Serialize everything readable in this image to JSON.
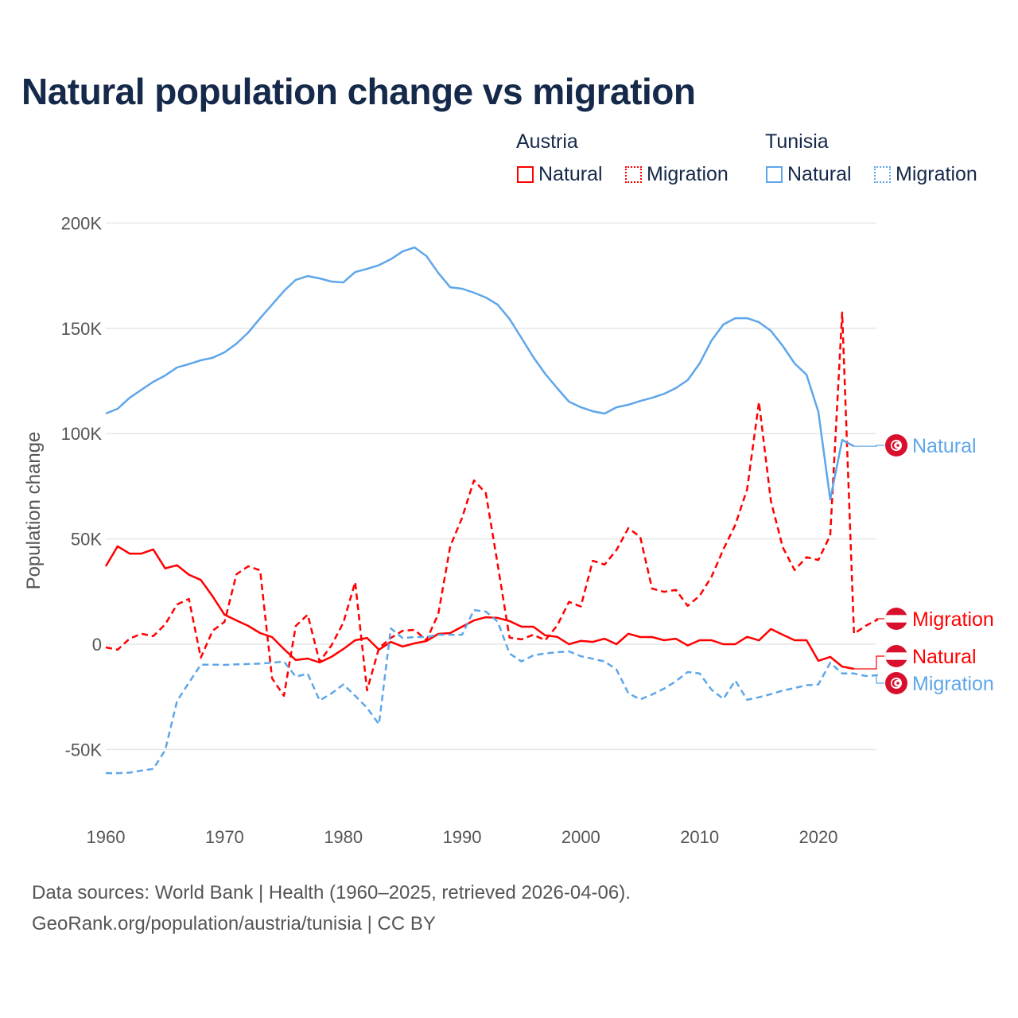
{
  "title": "Natural population change vs migration",
  "legend": {
    "groups": [
      {
        "name": "Austria",
        "color": "#ff0000",
        "items": [
          "Natural",
          "Migration"
        ]
      },
      {
        "name": "Tunisia",
        "color": "#5ea6ea",
        "items": [
          "Natural",
          "Migration"
        ]
      }
    ]
  },
  "footer": {
    "line1": "Data sources: World Bank | Health (1960–2025, retrieved 2026-04-06).",
    "line2": "GeoRank.org/population/austria/tunisia | CC BY"
  },
  "chart_data": {
    "type": "line",
    "title": "Natural population change vs migration",
    "xlabel": "",
    "ylabel": "Population change",
    "xlim": [
      1960,
      2025
    ],
    "ylim": [
      -50000,
      200000
    ],
    "x_ticks": [
      1960,
      1970,
      1980,
      1990,
      2000,
      2010,
      2020
    ],
    "x_tick_labels": [
      "1960",
      "1970",
      "1980",
      "1990",
      "2000",
      "2010",
      "2020"
    ],
    "y_ticks": [
      200000,
      150000,
      100000,
      50000,
      0,
      -50000
    ],
    "y_tick_labels": [
      "200K",
      "150K",
      "100K",
      "50K",
      "0",
      "-50K"
    ],
    "grid": true,
    "legend_position": "top-right",
    "series": [
      {
        "name": "Austria Natural",
        "country": "Austria",
        "kind": "Natural",
        "color": "#ff0000",
        "dashed": false,
        "end_label": "Natural",
        "start_year": 1960,
        "values": [
          37000,
          46500,
          43000,
          43000,
          45000,
          36000,
          37500,
          33000,
          30500,
          22700,
          14000,
          11300,
          8700,
          5300,
          3400,
          -2300,
          -7500,
          -6800,
          -8700,
          -6000,
          -2300,
          1900,
          3000,
          -2600,
          1100,
          -1100,
          400,
          1500,
          4900,
          5300,
          8300,
          11300,
          12800,
          12500,
          11000,
          8300,
          8300,
          4200,
          3500,
          0,
          1600,
          1100,
          2600,
          0,
          5000,
          3400,
          3400,
          1900,
          2600,
          -600,
          1900,
          1900,
          0,
          0,
          3500,
          1800,
          7200,
          4500,
          1900,
          1900,
          -7900,
          -6000,
          -10600,
          -11700
        ]
      },
      {
        "name": "Austria Migration",
        "country": "Austria",
        "kind": "Migration",
        "color": "#ff0000",
        "dashed": true,
        "end_label": "Migration",
        "start_year": 1960,
        "values": [
          -1500,
          -2600,
          2600,
          5000,
          3800,
          9400,
          18900,
          21500,
          -6400,
          6400,
          10600,
          33200,
          37000,
          35100,
          -16200,
          -24500,
          8700,
          14000,
          -8300,
          -600,
          10200,
          29500,
          -21900,
          -1900,
          3000,
          6400,
          6800,
          1900,
          14300,
          46500,
          60000,
          77800,
          71700,
          37800,
          3100,
          2300,
          4500,
          1900,
          8800,
          20100,
          17900,
          39600,
          37800,
          44700,
          55100,
          51000,
          26400,
          24900,
          25800,
          18200,
          23000,
          32000,
          45000,
          56600,
          73600,
          115000,
          68000,
          46000,
          35200,
          41300,
          40000,
          51700,
          157500,
          5000,
          8800,
          11700
        ]
      },
      {
        "name": "Tunisia Natural",
        "country": "Tunisia",
        "kind": "Natural",
        "color": "#5ea6ea",
        "dashed": false,
        "end_label": "Natural",
        "start_year": 1960,
        "values": [
          109500,
          111800,
          117000,
          120800,
          124600,
          127600,
          131400,
          133000,
          134800,
          136000,
          138600,
          142700,
          148000,
          154800,
          161200,
          167700,
          173000,
          174800,
          173700,
          172200,
          171800,
          176700,
          178200,
          180000,
          182800,
          186500,
          188400,
          184300,
          176300,
          169500,
          168800,
          166900,
          164600,
          161200,
          154400,
          145400,
          136300,
          128400,
          121600,
          115200,
          112500,
          110600,
          109500,
          112500,
          113700,
          115500,
          117000,
          118900,
          121600,
          125400,
          133300,
          144200,
          151800,
          154800,
          154800,
          152900,
          148800,
          141600,
          133300,
          128000,
          110300,
          68700,
          97000,
          94000
        ]
      },
      {
        "name": "Tunisia Migration",
        "country": "Tunisia",
        "kind": "Migration",
        "color": "#5ea6ea",
        "dashed": true,
        "end_label": "Migration",
        "start_year": 1960,
        "values": [
          -61200,
          -61200,
          -61000,
          -60000,
          -59200,
          -50300,
          -27000,
          -18300,
          -9700,
          -9700,
          -9800,
          -9600,
          -9400,
          -9200,
          -8800,
          -8200,
          -15400,
          -14000,
          -26700,
          -23400,
          -19100,
          -24500,
          -30200,
          -38000,
          7500,
          2900,
          3400,
          3400,
          4500,
          4500,
          4500,
          16200,
          15500,
          10700,
          -4400,
          -8200,
          -5300,
          -4400,
          -3800,
          -3400,
          -5700,
          -6900,
          -8200,
          -12000,
          -23300,
          -26200,
          -23900,
          -21100,
          -17600,
          -13200,
          -13900,
          -21600,
          -26000,
          -17300,
          -26400,
          -25200,
          -23700,
          -22000,
          -20800,
          -19500,
          -19100,
          -8800,
          -13900,
          -13900,
          -15100,
          -14700
        ]
      }
    ]
  }
}
